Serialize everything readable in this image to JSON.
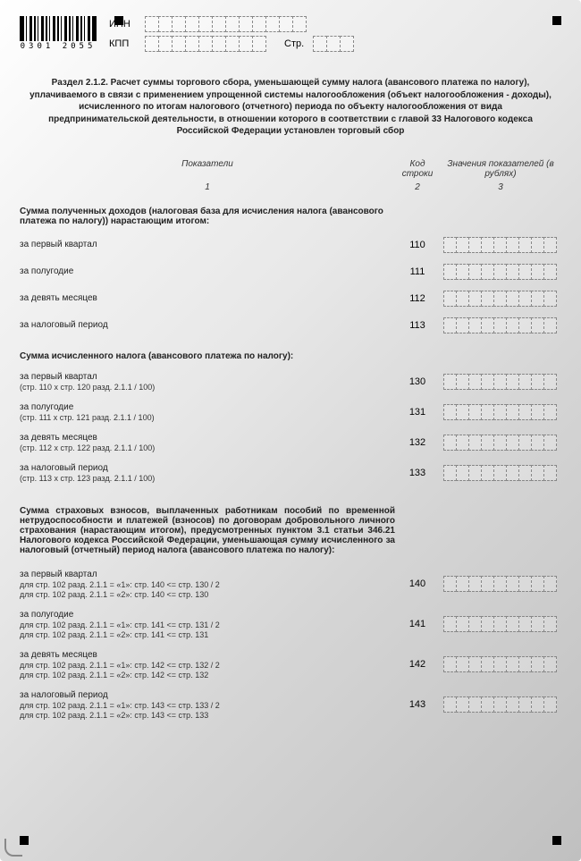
{
  "barcode_text": "0301 2055",
  "header": {
    "inn_label": "ИНН",
    "kpp_label": "КПП",
    "str_label": "Стр."
  },
  "title": "Раздел 2.1.2. Расчет суммы торгового сбора,\nуменьшающей сумму налога (авансового платежа по налогу), уплачиваемого в связи с применением упрощенной системы налогообложения (объект налогообложения - доходы), исчисленного по итогам налогового (отчетного) периода по объекту налогообложения от вида предпринимательской деятельности, в отношении которого в соответствии с главой 33 Налогового кодекса Российской Федерации установлен торговый сбор",
  "columns": {
    "h1": "Показатели",
    "h2": "Код строки",
    "h3": "Значения показателей (в рублях)",
    "n1": "1",
    "n2": "2",
    "n3": "3"
  },
  "section1": {
    "title": "Сумма полученных доходов (налоговая база для исчисления налога (авансового платежа по налогу)) нарастающим итогом:",
    "rows": [
      {
        "label": "за первый квартал",
        "code": "110"
      },
      {
        "label": "за полугодие",
        "code": "111"
      },
      {
        "label": "за девять месяцев",
        "code": "112"
      },
      {
        "label": "за налоговый период",
        "code": "113"
      }
    ]
  },
  "section2": {
    "title": "Сумма исчисленного налога (авансового платежа по налогу):",
    "rows": [
      {
        "label": "за первый квартал",
        "sub": "(стр. 110 x стр. 120 разд. 2.1.1 / 100)",
        "code": "130"
      },
      {
        "label": "за полугодие",
        "sub": "(стр. 111 x стр. 121 разд. 2.1.1 / 100)",
        "code": "131"
      },
      {
        "label": "за девять месяцев",
        "sub": "(стр. 112 x стр. 122 разд. 2.1.1 / 100)",
        "code": "132"
      },
      {
        "label": "за налоговый период",
        "sub": "(стр. 113 x стр. 123 разд. 2.1.1 / 100)",
        "code": "133"
      }
    ]
  },
  "section3": {
    "title": "Сумма страховых взносов, выплаченных работникам пособий по временной нетрудоспособности и платежей (взносов) по договорам добровольного личного страхования (нарастающим итогом), предусмотренных пунктом 3.1 статьи 346.21 Налогового кодекса Российской Федерации, уменьшающая сумму исчисленного за налоговый (отчетный) период налога (авансового платежа по налогу):",
    "rows": [
      {
        "label": "за первый квартал",
        "sub1": "для стр. 102 разд. 2.1.1 = «1»: стр. 140 <= стр. 130 / 2",
        "sub2": "для стр. 102 разд. 2.1.1 = «2»: стр. 140 <= стр. 130",
        "code": "140"
      },
      {
        "label": "за полугодие",
        "sub1": "для стр. 102 разд. 2.1.1 = «1»: стр. 141 <= стр. 131 / 2",
        "sub2": "для стр. 102 разд. 2.1.1 = «2»: стр. 141 <= стр. 131",
        "code": "141"
      },
      {
        "label": "за девять месяцев",
        "sub1": "для стр. 102 разд. 2.1.1 = «1»: стр. 142 <= стр. 132 / 2",
        "sub2": "для стр. 102 разд. 2.1.1 = «2»: стр. 142 <= стр. 132",
        "code": "142"
      },
      {
        "label": "за налоговый период",
        "sub1": "для стр. 102 разд. 2.1.1 = «1»: стр. 143 <= стр. 133 / 2",
        "sub2": "для стр. 102 разд. 2.1.1 = «2»: стр. 143 <= стр. 133",
        "code": "143"
      }
    ]
  },
  "cells": {
    "inn": 12,
    "kpp": 9,
    "str": 3,
    "value": 9
  }
}
